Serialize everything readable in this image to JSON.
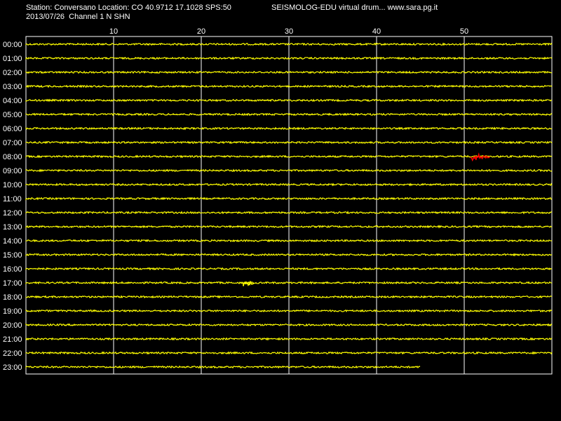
{
  "header": {
    "station_line": "Station: Conversano Location: CO 40.9712 17.1028 SPS:50",
    "program_line": "SEISMOLOG-EDU virtual drum... www.sara.pg.it",
    "date_line": "2013/07/26  Channel 1 N SHN"
  },
  "colors": {
    "background": "#000000",
    "trace": "#ffff00",
    "frame": "#ffffff",
    "event_marker": "#ff0000"
  },
  "chart_data": {
    "type": "line",
    "title": "",
    "xlabel": "",
    "ylabel": "",
    "x_unit": "minutes",
    "xlim": [
      0,
      60
    ],
    "x_ticks": [
      10,
      20,
      30,
      40,
      50
    ],
    "grid": true,
    "rows": [
      {
        "label": "00:00",
        "end_minute": 60
      },
      {
        "label": "01:00",
        "end_minute": 60
      },
      {
        "label": "02:00",
        "end_minute": 60
      },
      {
        "label": "03:00",
        "end_minute": 60
      },
      {
        "label": "04:00",
        "end_minute": 60
      },
      {
        "label": "05:00",
        "end_minute": 60
      },
      {
        "label": "06:00",
        "end_minute": 60
      },
      {
        "label": "07:00",
        "end_minute": 60
      },
      {
        "label": "08:00",
        "end_minute": 60
      },
      {
        "label": "09:00",
        "end_minute": 60
      },
      {
        "label": "10:00",
        "end_minute": 60
      },
      {
        "label": "11:00",
        "end_minute": 60
      },
      {
        "label": "12:00",
        "end_minute": 60
      },
      {
        "label": "13:00",
        "end_minute": 60
      },
      {
        "label": "14:00",
        "end_minute": 60
      },
      {
        "label": "15:00",
        "end_minute": 60
      },
      {
        "label": "16:00",
        "end_minute": 60
      },
      {
        "label": "17:00",
        "end_minute": 60
      },
      {
        "label": "18:00",
        "end_minute": 60
      },
      {
        "label": "19:00",
        "end_minute": 60
      },
      {
        "label": "20:00",
        "end_minute": 60
      },
      {
        "label": "21:00",
        "end_minute": 60
      },
      {
        "label": "22:00",
        "end_minute": 60
      },
      {
        "label": "23:00",
        "end_minute": 45
      }
    ],
    "events": [
      {
        "row": "08:00",
        "start_minute": 50.7,
        "end_minute": 53.0,
        "color": "#ff0000"
      },
      {
        "row": "17:00",
        "start_minute": 24.8,
        "end_minute": 26.0,
        "color": "#ffff00"
      }
    ]
  }
}
